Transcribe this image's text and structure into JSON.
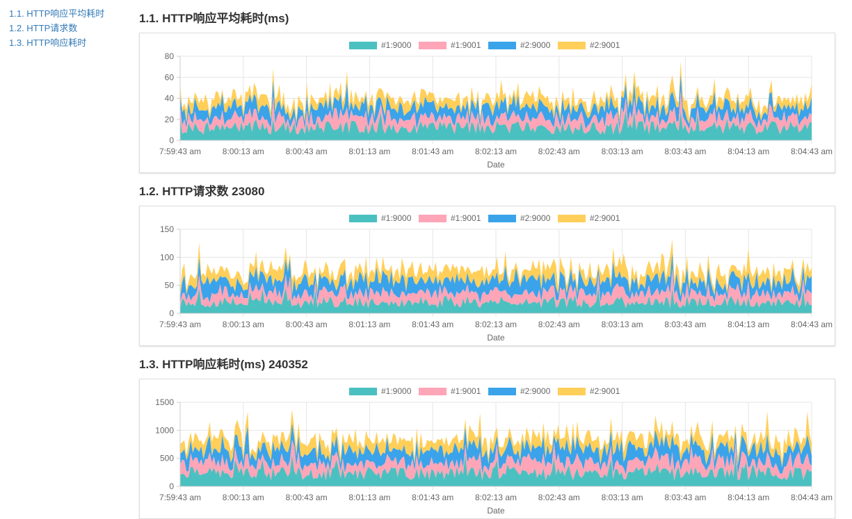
{
  "toc": [
    {
      "label": "1.1. HTTP响应平均耗时"
    },
    {
      "label": "1.2. HTTP请求数"
    },
    {
      "label": "1.3. HTTP响应耗时"
    }
  ],
  "sections": [
    {
      "title": "1.1. HTTP响应平均耗时(ms)"
    },
    {
      "title": "1.2. HTTP请求数 23080"
    },
    {
      "title": "1.3. HTTP响应耗时(ms) 240352"
    }
  ],
  "legend": [
    {
      "name": "#1:9000",
      "color": "#4bc0c0"
    },
    {
      "name": "#1:9001",
      "color": "#ffa5b8"
    },
    {
      "name": "#2:9000",
      "color": "#3ba3ea"
    },
    {
      "name": "#2:9001",
      "color": "#ffcf5a"
    }
  ],
  "chart_data": [
    {
      "type": "area",
      "stacked": true,
      "xlabel": "Date",
      "ylim": [
        0,
        80
      ],
      "yticks": [
        0,
        20,
        40,
        60,
        80
      ],
      "xticks": [
        "7:59:43 am",
        "8:00:13 am",
        "8:00:43 am",
        "8:01:13 am",
        "8:01:43 am",
        "8:02:13 am",
        "8:02:43 am",
        "8:03:13 am",
        "8:03:43 am",
        "8:04:13 am",
        "8:04:43 am"
      ],
      "x_range_seconds": [
        0,
        300
      ],
      "grid": true,
      "legend_position": "top",
      "series_means": [
        12,
        9,
        10,
        8
      ]
    },
    {
      "type": "area",
      "stacked": true,
      "xlabel": "Date",
      "ylim": [
        0,
        150
      ],
      "yticks": [
        0,
        50,
        100,
        150
      ],
      "xticks": [
        "7:59:43 am",
        "8:00:13 am",
        "8:00:43 am",
        "8:01:13 am",
        "8:01:43 am",
        "8:02:13 am",
        "8:02:43 am",
        "8:03:13 am",
        "8:03:43 am",
        "8:04:13 am",
        "8:04:43 am"
      ],
      "x_range_seconds": [
        0,
        300
      ],
      "grid": true,
      "legend_position": "top",
      "series_means": [
        20,
        17,
        21,
        18
      ]
    },
    {
      "type": "area",
      "stacked": true,
      "xlabel": "Date",
      "ylim": [
        0,
        1500
      ],
      "yticks": [
        0,
        500,
        1000,
        1500
      ],
      "xticks": [
        "7:59:43 am",
        "8:00:13 am",
        "8:00:43 am",
        "8:01:13 am",
        "8:01:43 am",
        "8:02:13 am",
        "8:02:43 am",
        "8:03:13 am",
        "8:03:43 am",
        "8:04:13 am",
        "8:04:43 am"
      ],
      "x_range_seconds": [
        0,
        300
      ],
      "grid": true,
      "legend_position": "top",
      "series_means": [
        230,
        190,
        220,
        180
      ]
    }
  ]
}
